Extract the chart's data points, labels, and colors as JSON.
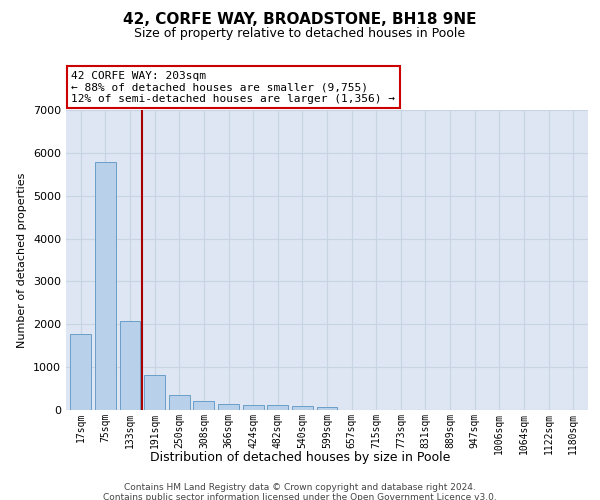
{
  "title": "42, CORFE WAY, BROADSTONE, BH18 9NE",
  "subtitle": "Size of property relative to detached houses in Poole",
  "xlabel": "Distribution of detached houses by size in Poole",
  "ylabel": "Number of detached properties",
  "bar_color": "#b8d0ea",
  "bar_edge_color": "#6a9fc8",
  "grid_color": "#c8d4e4",
  "background_color": "#dde6f2",
  "vline_color": "#aa0000",
  "annotation_text": "42 CORFE WAY: 203sqm\n← 88% of detached houses are smaller (9,755)\n12% of semi-detached houses are larger (1,356) →",
  "annotation_box_color": "#ffffff",
  "annotation_border_color": "#cc0000",
  "categories": [
    "17sqm",
    "75sqm",
    "133sqm",
    "191sqm",
    "250sqm",
    "308sqm",
    "366sqm",
    "424sqm",
    "482sqm",
    "540sqm",
    "599sqm",
    "657sqm",
    "715sqm",
    "773sqm",
    "831sqm",
    "889sqm",
    "947sqm",
    "1006sqm",
    "1064sqm",
    "1122sqm",
    "1180sqm"
  ],
  "values": [
    1780,
    5780,
    2070,
    820,
    340,
    200,
    130,
    115,
    110,
    105,
    75,
    0,
    0,
    0,
    0,
    0,
    0,
    0,
    0,
    0,
    0
  ],
  "ylim": [
    0,
    7000
  ],
  "yticks": [
    0,
    1000,
    2000,
    3000,
    4000,
    5000,
    6000,
    7000
  ],
  "footnote1": "Contains HM Land Registry data © Crown copyright and database right 2024.",
  "footnote2": "Contains public sector information licensed under the Open Government Licence v3.0."
}
